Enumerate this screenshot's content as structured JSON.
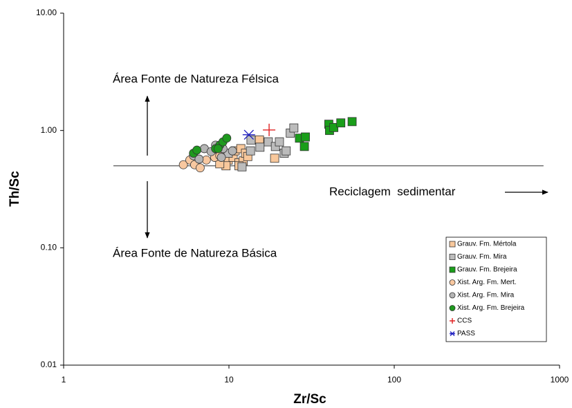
{
  "chart_data": {
    "type": "scatter",
    "x_label": "Zr/Sc",
    "y_label": "Th/Sc",
    "xscale": "log",
    "yscale": "log",
    "xlim": [
      1,
      1000
    ],
    "ylim": [
      0.01,
      10
    ],
    "xticks": [
      1,
      10,
      100,
      1000
    ],
    "yticks": [
      {
        "value": 0.01,
        "label": "0.01"
      },
      {
        "value": 0.1,
        "label": "0.10"
      },
      {
        "value": 1,
        "label": "1.00"
      },
      {
        "value": 10,
        "label": "10.00"
      }
    ],
    "grid": false,
    "legend": "lower right",
    "reference_line": {
      "y": 0.5,
      "x": [
        2,
        800
      ]
    },
    "annotations": [
      "Área Fonte de Natureza Félsica",
      "Área Fonte de Natureza Básica",
      "Reciclagem  sedimentar"
    ],
    "series": [
      {
        "name": "Grauv. Fm. Mértola",
        "marker": "square",
        "color": "#f8c89c",
        "x": [
          9.2,
          9.9,
          10.6,
          11.5,
          12.2,
          10.9,
          11.8,
          12.6,
          15.3,
          18.9,
          9.6,
          11.5,
          8.8,
          13.0
        ],
        "values": [
          0.63,
          0.56,
          0.59,
          0.53,
          0.55,
          0.67,
          0.7,
          0.64,
          0.83,
          0.58,
          0.5,
          0.5,
          0.52,
          0.6
        ]
      },
      {
        "name": "Grauv. Fm. Mira",
        "marker": "square",
        "color": "#bcbcbc",
        "x": [
          12,
          13.5,
          15.4,
          17.3,
          19.1,
          20.2,
          21.6,
          22.2,
          23.5,
          24.7,
          9.9,
          13.6
        ],
        "values": [
          0.49,
          0.67,
          0.72,
          0.8,
          0.73,
          0.8,
          0.64,
          0.67,
          0.95,
          1.05,
          0.64,
          0.83
        ]
      },
      {
        "name": "Grauv. Fm. Brejeira",
        "marker": "square",
        "color": "#1a9e1a",
        "x": [
          26.7,
          29.0,
          28.6,
          40.2,
          40.6,
          43.1,
          47.5,
          55.6
        ],
        "values": [
          0.86,
          0.88,
          0.73,
          1.13,
          1.0,
          1.06,
          1.16,
          1.19
        ]
      },
      {
        "name": "Xist. Arg. Fm. Mert.",
        "marker": "circle",
        "color": "#f8c8a0",
        "x": [
          5.3,
          5.8,
          6.2,
          6.7,
          7.3,
          8.2,
          8.8
        ],
        "values": [
          0.51,
          0.56,
          0.51,
          0.48,
          0.56,
          0.59,
          0.61
        ]
      },
      {
        "name": "Xist. Arg. Fm. Mira",
        "marker": "circle",
        "color": "#b4b4b4",
        "x": [
          6.1,
          6.6,
          7.1,
          7.8,
          8.3,
          9.2,
          10.5,
          9.0
        ],
        "values": [
          0.61,
          0.57,
          0.7,
          0.66,
          0.75,
          0.7,
          0.67,
          0.59
        ]
      },
      {
        "name": "Xist. Arg. Fm. Brejeira",
        "marker": "circle",
        "color": "#1e9a1e",
        "x": [
          6.1,
          6.4,
          8.3,
          8.8,
          9.2,
          9.7,
          8.6
        ],
        "values": [
          0.64,
          0.68,
          0.7,
          0.75,
          0.8,
          0.86,
          0.7
        ]
      },
      {
        "name": "CCS",
        "marker": "plus",
        "color": "#e02020",
        "x": [
          17.5
        ],
        "values": [
          1.01
        ]
      },
      {
        "name": "PASS",
        "marker": "star",
        "color": "#2020c0",
        "x": [
          13.2
        ],
        "values": [
          0.92
        ]
      }
    ]
  }
}
